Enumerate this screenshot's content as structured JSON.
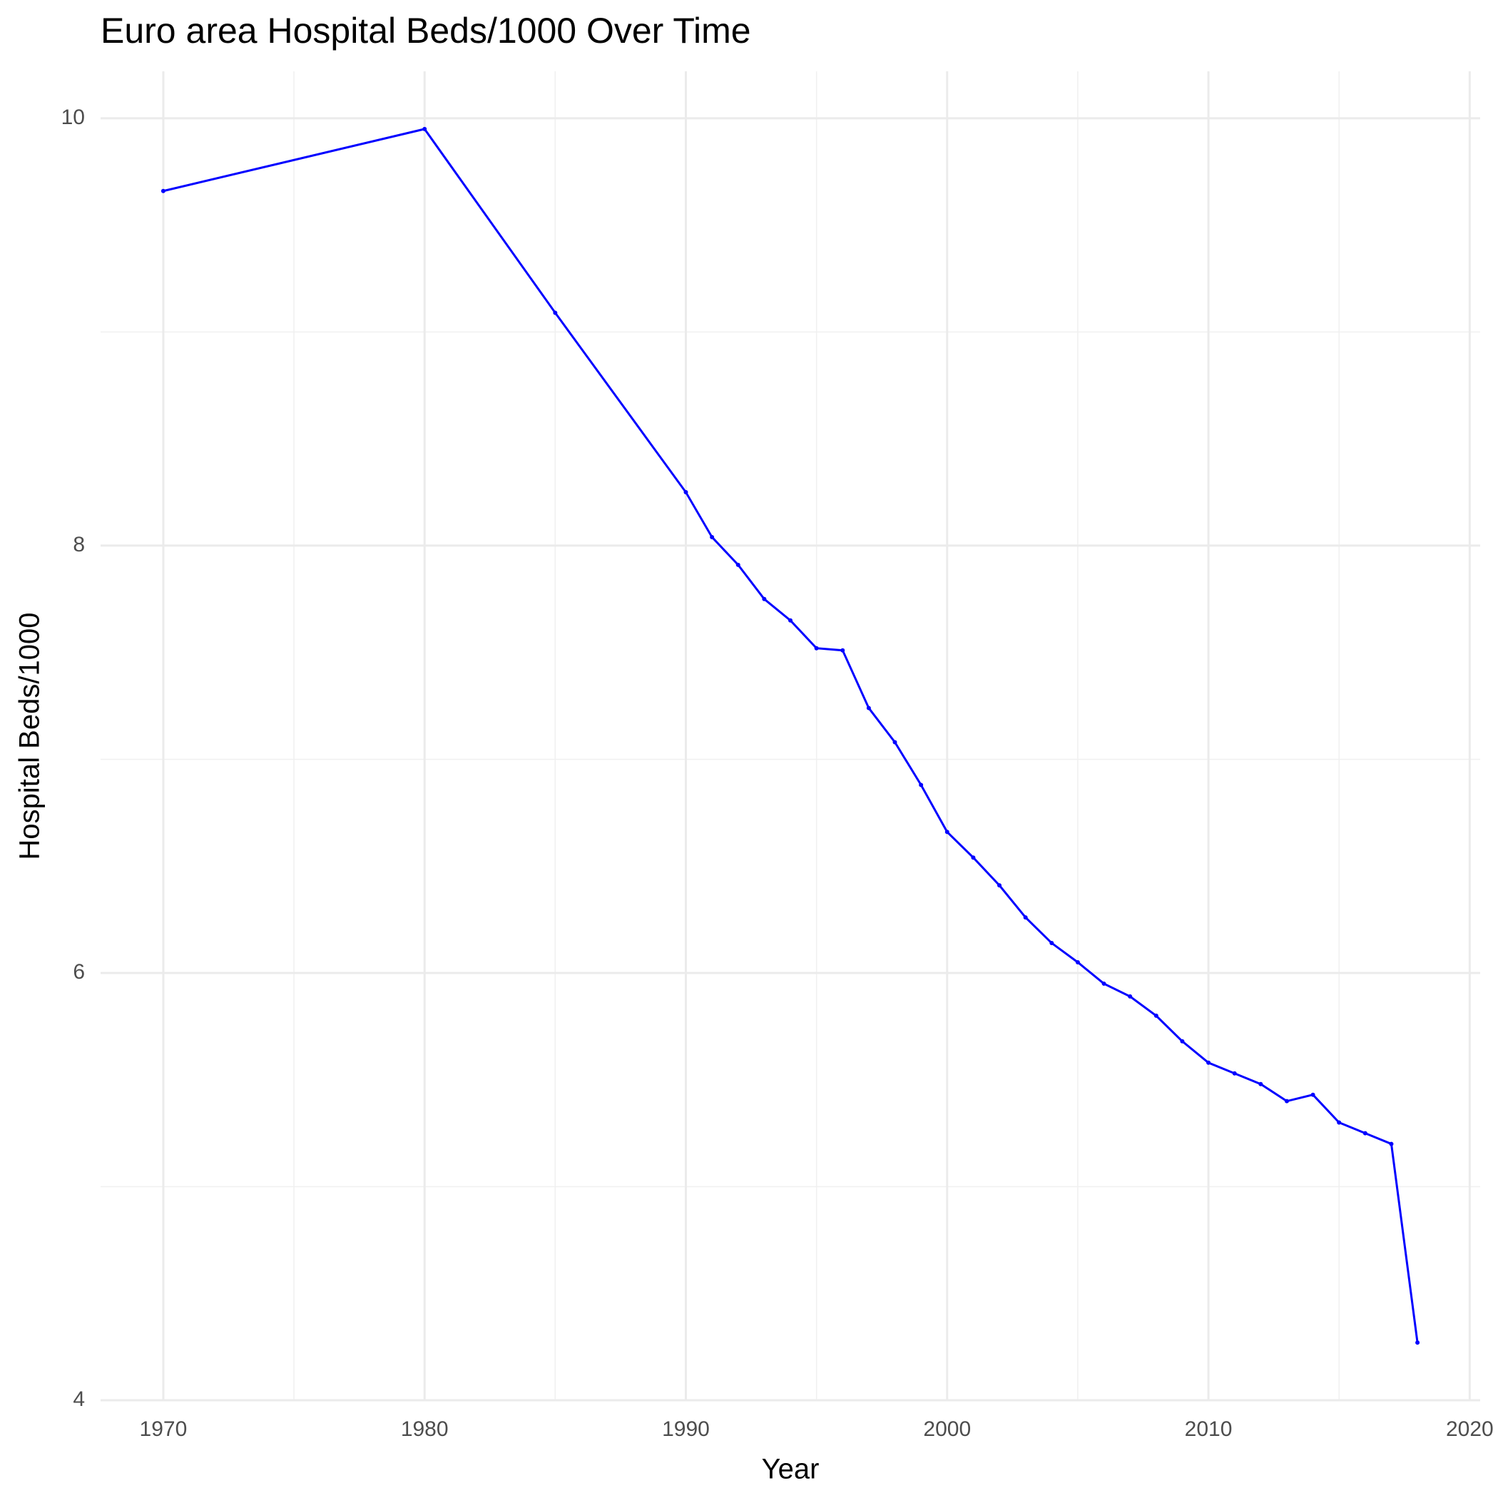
{
  "chart_data": {
    "type": "line",
    "title": "Euro area Hospital Beds/1000 Over Time",
    "x_label": "Year",
    "y_label": "Hospital Beds/1000",
    "x": [
      1970,
      1980,
      1985,
      1990,
      1991,
      1992,
      1993,
      1994,
      1995,
      1996,
      1997,
      1998,
      1999,
      2000,
      2001,
      2002,
      2003,
      2004,
      2005,
      2006,
      2007,
      2008,
      2009,
      2010,
      2011,
      2012,
      2013,
      2014,
      2015,
      2016,
      2017,
      2018
    ],
    "values": [
      9.66,
      9.95,
      9.09,
      8.25,
      8.04,
      7.91,
      7.75,
      7.65,
      7.52,
      7.51,
      7.24,
      7.08,
      6.88,
      6.66,
      6.54,
      6.41,
      6.26,
      6.14,
      6.05,
      5.95,
      5.89,
      5.8,
      5.68,
      5.58,
      5.53,
      5.48,
      5.4,
      5.43,
      5.3,
      5.25,
      5.2,
      4.27
    ],
    "color": "#0000ff",
    "xlim": [
      1967.6,
      2020.4
    ],
    "xticks": [
      1970,
      1980,
      1990,
      2000,
      2010,
      2020
    ],
    "ylim": [
      4,
      10.22
    ],
    "yticks": [
      4,
      6,
      8,
      10
    ],
    "grid": true
  }
}
